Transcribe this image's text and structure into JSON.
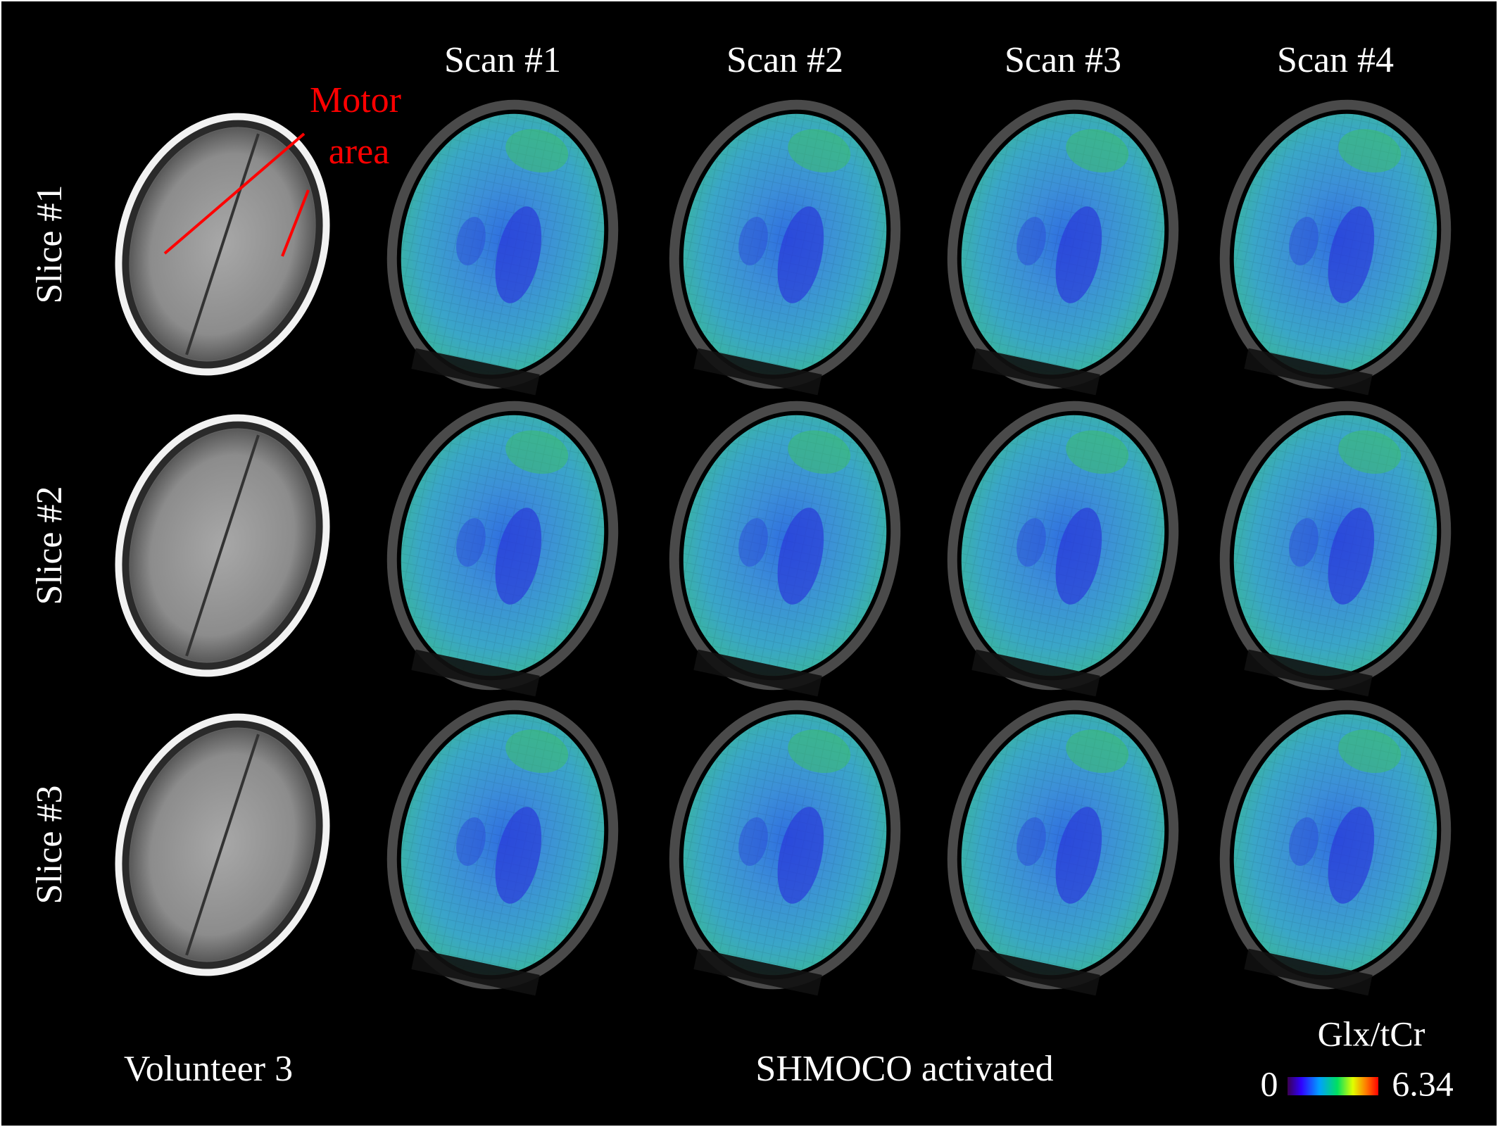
{
  "header": {
    "columns": [
      "Scan #1",
      "Scan #2",
      "Scan #3",
      "Scan #4"
    ]
  },
  "rows": [
    "Slice #1",
    "Slice #2",
    "Slice #3"
  ],
  "annotation": {
    "lines": [
      "Motor",
      "area"
    ]
  },
  "footer": {
    "subject": "Volunteer 3",
    "condition": "SHMOCO activated"
  },
  "colorbar": {
    "title": "Glx/tCr",
    "min_label": "0",
    "max_label": "6.34"
  }
}
